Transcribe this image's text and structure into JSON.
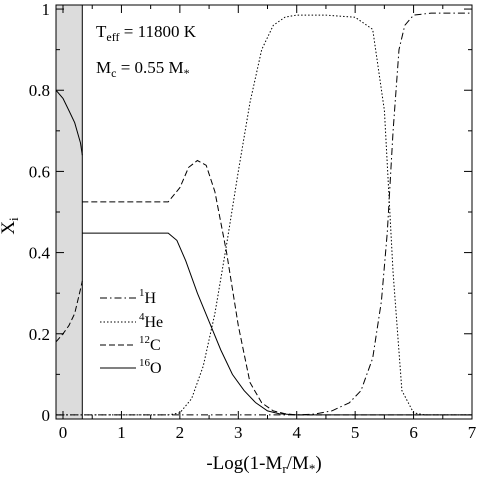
{
  "chart_data": {
    "type": "line",
    "xlabel": "-Log(1-Mr/M*)",
    "ylabel": "Xᵢ",
    "xlim": [
      -0.12,
      7
    ],
    "ylim": [
      -0.01,
      1.01
    ],
    "xticks": [
      0,
      1,
      2,
      3,
      4,
      5,
      6,
      7
    ],
    "yticks": [
      0,
      0.2,
      0.4,
      0.6,
      0.8,
      1
    ],
    "ytick_labels": [
      "0",
      "0.2",
      "0.4",
      "0.6",
      "0.8",
      "1"
    ],
    "shaded_region": [
      -0.12,
      0.33
    ],
    "annotations": {
      "teff": "T_eff = 11800 K",
      "mc": "M_c = 0.55 M_*"
    },
    "legend_position": "center-left",
    "series": [
      {
        "name": "1H",
        "style": "dashdot",
        "x": [
          -0.12,
          0.33,
          3.6,
          3.8,
          4.0,
          4.3,
          4.6,
          4.9,
          5.1,
          5.3,
          5.45,
          5.55,
          5.65,
          5.75,
          5.85,
          6.0,
          6.3,
          7.0
        ],
        "y": [
          0.0,
          0.0,
          0.0,
          0.0,
          0.0,
          0.002,
          0.01,
          0.03,
          0.06,
          0.14,
          0.28,
          0.45,
          0.7,
          0.9,
          0.96,
          0.985,
          0.99,
          0.99
        ]
      },
      {
        "name": "4He",
        "style": "dotted",
        "x": [
          -0.12,
          0.33,
          1.8,
          2.0,
          2.2,
          2.4,
          2.6,
          2.8,
          3.0,
          3.2,
          3.4,
          3.6,
          3.8,
          4.0,
          4.5,
          5.0,
          5.3,
          5.5,
          5.65,
          5.8,
          6.0,
          6.2,
          7.0
        ],
        "y": [
          0.0,
          0.0,
          0.0,
          0.005,
          0.04,
          0.12,
          0.25,
          0.42,
          0.6,
          0.77,
          0.9,
          0.96,
          0.98,
          0.985,
          0.985,
          0.98,
          0.95,
          0.75,
          0.35,
          0.06,
          0.005,
          0.0,
          0.0
        ]
      },
      {
        "name": "12C",
        "style": "dashed",
        "x": [
          0.33,
          1.8,
          2.0,
          2.15,
          2.3,
          2.45,
          2.6,
          2.8,
          3.0,
          3.2,
          3.4,
          3.6,
          3.8,
          4.0,
          7.0
        ],
        "y": [
          0.525,
          0.525,
          0.56,
          0.61,
          0.627,
          0.615,
          0.55,
          0.4,
          0.22,
          0.08,
          0.03,
          0.01,
          0.003,
          0.0,
          0.0
        ],
        "x_core": [
          -0.12,
          0.0,
          0.1,
          0.2,
          0.3,
          0.33
        ],
        "y_core": [
          0.18,
          0.2,
          0.22,
          0.25,
          0.31,
          0.33
        ]
      },
      {
        "name": "16O",
        "style": "solid",
        "x": [
          0.33,
          1.8,
          1.95,
          2.1,
          2.3,
          2.5,
          2.7,
          2.9,
          3.1,
          3.3,
          3.5,
          3.7,
          4.0,
          7.0
        ],
        "y": [
          0.448,
          0.448,
          0.43,
          0.38,
          0.3,
          0.23,
          0.16,
          0.1,
          0.06,
          0.03,
          0.01,
          0.003,
          0.0,
          0.0
        ],
        "x_core": [
          -0.12,
          0.0,
          0.1,
          0.2,
          0.3,
          0.33
        ],
        "y_core": [
          0.8,
          0.78,
          0.75,
          0.72,
          0.67,
          0.64
        ]
      }
    ]
  }
}
